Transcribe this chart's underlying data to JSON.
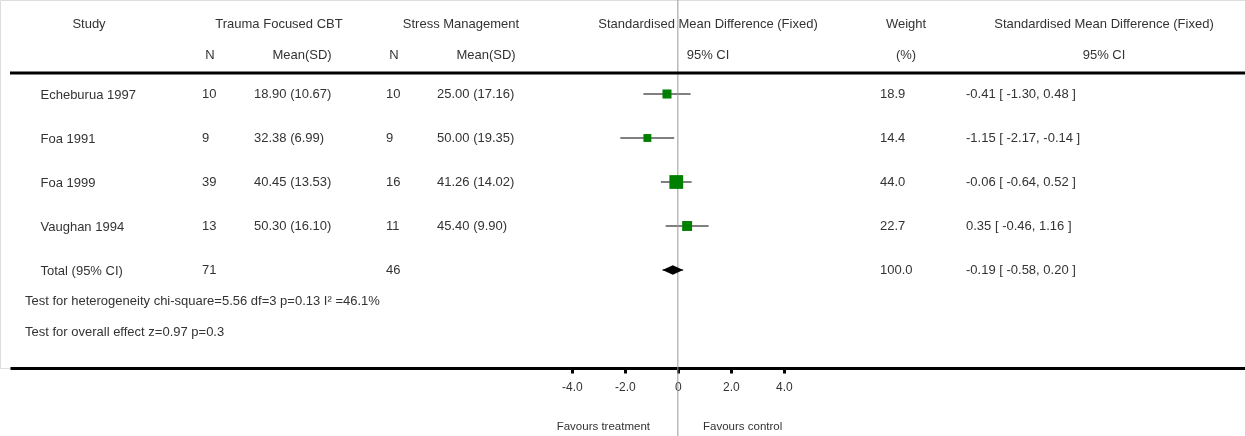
{
  "chart_data": {
    "type": "scatter",
    "orientation": "horizontal",
    "grid": false,
    "categories": [
      "Echeburua 1997",
      "Foa 1991",
      "Foa 1999",
      "Vaughan 1994",
      "Total (95% CI)"
    ],
    "series": [
      {
        "type": "bubble",
        "marker": "square",
        "color": "#008000",
        "values": [
          -0.41,
          -1.15,
          -0.06,
          0.35,
          null
        ],
        "errors": [
          [
            -1.3,
            0.48
          ],
          [
            -2.17,
            -0.14
          ],
          [
            -0.64,
            0.52
          ],
          [
            -0.46,
            1.16
          ],
          null
        ],
        "sizes": [
          0.43,
          0.33,
          1,
          0.52,
          null
        ]
      },
      {
        "type": "scatter",
        "marker": "diamond",
        "color": "#000000",
        "values": [
          null,
          null,
          null,
          null,
          -0.19
        ],
        "errors": [
          null,
          null,
          null,
          null,
          [
            -0.58,
            0.2
          ]
        ]
      }
    ],
    "xlim": [
      -25.2,
      21.4
    ],
    "xticks": [
      {
        "value": -4,
        "label": "-4.0"
      },
      {
        "value": -2,
        "label": "-2.0"
      },
      0,
      {
        "value": 2,
        "label": "2.0"
      },
      {
        "value": 4,
        "label": "4.0"
      }
    ],
    "ref_lines": [
      {
        "axis": "x",
        "value": 0,
        "color": "#999999"
      }
    ],
    "annotations": [
      "Study",
      "Trauma Focused CBT",
      "Stress Management",
      "Standardised Mean Difference (Fixed)",
      "Weight",
      "Standardised Mean Difference (Fixed)",
      "N",
      "Mean(SD)",
      "N",
      "Mean(SD)",
      "95% CI",
      "(%)",
      "95% CI",
      "10",
      "18.90 (10.67)",
      "10",
      "25.00 (17.16)",
      "18.9",
      "-0.41 [ -1.30, 0.48 ]",
      "9",
      "32.38 (6.99)",
      "9",
      "50.00 (19.35)",
      "14.4",
      "-1.15 [ -2.17, -0.14 ]",
      "39",
      "40.45 (13.53)",
      "16",
      "41.26 (14.02)",
      "44.0",
      "-0.06 [ -0.64, 0.52 ]",
      "13",
      "50.30 (16.10)",
      "11",
      "45.40 (9.90)",
      "22.7",
      "0.35 [ -0.46, 1.16 ]",
      "71",
      "46",
      "100.0",
      "-0.19 [ -0.58, 0.20 ]",
      "Test for heterogeneity chi-square=5.56 df=3 p=0.13 I² =46.1%",
      "Test for overall effect z=0.97    p=0.3",
      "Favours treatment",
      "Favours control"
    ]
  }
}
